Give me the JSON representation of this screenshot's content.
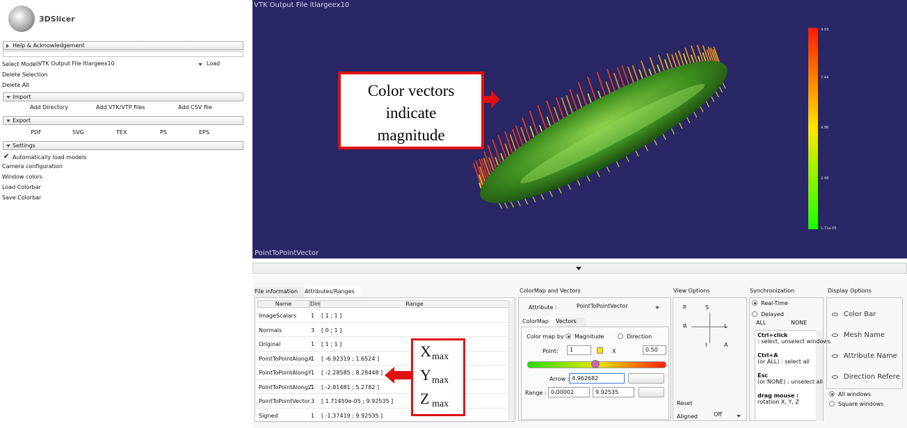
{
  "left_panel": {
    "logo": "3DSlicer",
    "help": "Help & Acknowledgement",
    "select_model_label": "Select Model:",
    "select_model_value": "VTK Output File ltlargeex10",
    "load": "Load",
    "delete_selection": "Delete Selection",
    "delete_all": "Delete All",
    "import": {
      "title": "Import",
      "buttons": [
        "Add Directory",
        "Add VTK/VTP files",
        "Add CSV file"
      ]
    },
    "export": {
      "title": "Export",
      "buttons": [
        "PDF",
        "SVG",
        "TEX",
        "PS",
        "EPS"
      ]
    },
    "settings": {
      "title": "Settings",
      "auto_load": "Automatically load models",
      "buttons": [
        "Camera configuration",
        "Window colors",
        "Load Colorbar",
        "Save Colorbar"
      ]
    }
  },
  "viewer": {
    "title": "VTK Output File ltlargeex10",
    "attribute": "PointToPointVector",
    "colorbar_labels": [
      "9.93",
      "7.44",
      "4.96",
      "2.48",
      "1.71e-05"
    ],
    "annotation": [
      "Color vectors",
      "indicate",
      "magnitude"
    ]
  },
  "bottom": {
    "tabs": [
      "File information",
      "Attributes/Ranges"
    ],
    "table": {
      "headers": [
        "Name",
        "Dim",
        "Range"
      ],
      "rows": [
        [
          "ImageScalars",
          "1",
          "[ 1 ; 1 ]"
        ],
        [
          "Normals",
          "3",
          "[ 0 ; 1 ]"
        ],
        [
          "Original",
          "1",
          "[ 1 ; 1 ]"
        ],
        [
          "PointToPointAlongX",
          "1",
          "[ -6.92319 ; 1.6524 ]"
        ],
        [
          "PointToPointAlongY",
          "1",
          "[ -2.28585 ; 8.28448 ]"
        ],
        [
          "PointToPointAlongZ",
          "1",
          "[ -2.81481 ; 5.2782 ]"
        ],
        [
          "PointToPointVector",
          "3",
          "[ 1.71459e-05 ; 9.92535 ]"
        ],
        [
          "Signed",
          "1",
          "[ -1.37419 ; 9.92535 ]"
        ]
      ]
    },
    "annotation": [
      {
        "base": "X",
        "sub": "max"
      },
      {
        "base": "Y",
        "sub": "max"
      },
      {
        "base": "Z",
        "sub": "max"
      }
    ],
    "colormap": {
      "title": "ColorMap and Vectors",
      "attribute_label": "Attribute :",
      "attribute_value": "PointToPointVector",
      "tabs": [
        "ColorMap",
        "Vectors"
      ],
      "color_map_by": "Color map by",
      "options": [
        "Magnitude",
        "Direction"
      ],
      "point_label": "Point:",
      "point_value": "1",
      "x": "X",
      "scale": "0.50",
      "arrow_label": "Arrow :",
      "arrow_value": "4.962682",
      "range_label": "Range :",
      "range_min": "0.00002",
      "range_max": "9.92535"
    },
    "view_options": {
      "title": "View Options",
      "buttons": [
        "P",
        "S",
        "R",
        "L",
        "I",
        "A"
      ],
      "reset": "Reset",
      "aligned_label": "Aligned",
      "aligned_value": "Off"
    },
    "synchronization": {
      "title": "Synchronization",
      "modes": [
        "Real-Time",
        "Delayed"
      ],
      "all": "ALL",
      "none": "NONE",
      "help": [
        {
          "bold": "Ctrl+click",
          "text": ": select, unselect windows"
        },
        {
          "bold": "Ctrl+A",
          "text": "(or ALL) : select all"
        },
        {
          "bold": "Esc",
          "text": "(or NONE) : unselect all"
        },
        {
          "bold": "drag mouse :",
          "text": "rotation X, Y, Z"
        }
      ]
    },
    "display_options": {
      "title": "Display Options",
      "items": [
        "Color Bar",
        "Mesh Name",
        "Attribute Name",
        "Direction Refere"
      ],
      "windows": [
        "All windows",
        "Square windows"
      ]
    }
  }
}
